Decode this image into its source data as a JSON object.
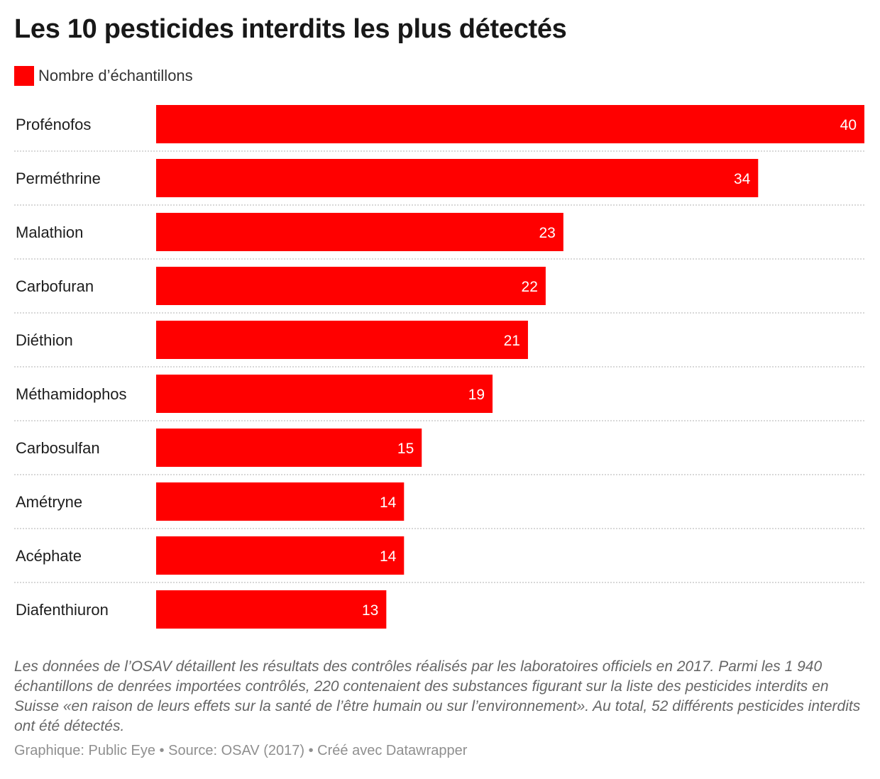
{
  "title": "Les 10 pesticides interdits les plus détectés",
  "legend": {
    "label": "Nombre d’échantillons",
    "color": "#ff0000"
  },
  "chart_data": {
    "type": "bar",
    "orientation": "horizontal",
    "categories": [
      "Profénofos",
      "Perméthrine",
      "Malathion",
      "Carbofuran",
      "Diéthion",
      "Méthamidophos",
      "Carbosulfan",
      "Amétryne",
      "Acéphate",
      "Diafenthiuron"
    ],
    "series": [
      {
        "name": "Nombre d’échantillons",
        "color": "#ff0000",
        "values": [
          40,
          34,
          23,
          22,
          21,
          19,
          15,
          14,
          14,
          13
        ]
      }
    ],
    "xlim": [
      0,
      40
    ],
    "grid": false,
    "data_labels": true
  },
  "note": "Les données de l’OSAV détaillent les résultats des contrôles réalisés par les laboratoires officiels en 2017. Parmi les 1 940 échantillons de denrées importées contrôlés, 220 contenaient des substances figurant sur la liste des pesticides interdits en Suisse «en raison de leurs effets sur la santé de l’être humain ou sur l’environnement». Au total, 52 différents pesticides interdits ont été détectés.",
  "footer": "Graphique: Public Eye • Source: OSAV (2017) • Créé avec Datawrapper"
}
